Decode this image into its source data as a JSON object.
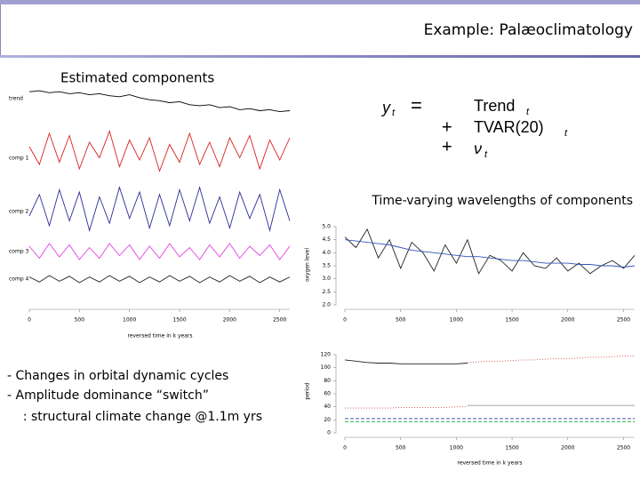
{
  "slide": {
    "title": "Example: Palæoclimatology",
    "left_heading": "Estimated components",
    "right_heading": "Time-varying wavelengths of components",
    "equation": {
      "lhs": "y",
      "lhs_sub": "t",
      "eq": "=",
      "terms": [
        {
          "op": "",
          "text": "Trend",
          "sub": "t"
        },
        {
          "op": "+",
          "text": "TVAR(20)",
          "sub": "t"
        },
        {
          "op": "+",
          "text": "ν",
          "sub": "t"
        }
      ]
    },
    "bullets": [
      "- Changes in orbital dynamic cycles",
      "- Amplitude dominance “switch”",
      "    : structural climate change @1.1m yrs"
    ]
  },
  "chart_data": [
    {
      "type": "panels",
      "xlabel": "reversed time in k years",
      "xlim": [
        0,
        2600
      ],
      "xticks": [
        0,
        500,
        1000,
        1500,
        2000,
        2500
      ],
      "x": [
        0,
        100,
        200,
        300,
        400,
        500,
        600,
        700,
        800,
        900,
        1000,
        1100,
        1200,
        1300,
        1400,
        1500,
        1600,
        1700,
        1800,
        1900,
        2000,
        2100,
        2200,
        2300,
        2400,
        2500,
        2600
      ],
      "panels": [
        {
          "name": "trend",
          "color": "#000000",
          "ylim": [
            -1,
            1.5
          ],
          "values": [
            1.0,
            1.05,
            0.95,
            1.0,
            0.9,
            0.95,
            0.85,
            0.9,
            0.8,
            0.75,
            0.85,
            0.7,
            0.6,
            0.55,
            0.45,
            0.5,
            0.35,
            0.3,
            0.35,
            0.2,
            0.25,
            0.1,
            0.15,
            0.05,
            0.1,
            0.0,
            0.05
          ]
        },
        {
          "name": "comp 1",
          "color": "#d62020",
          "ylim": [
            -1,
            1
          ],
          "values": [
            0.2,
            -0.6,
            0.8,
            -0.5,
            0.7,
            -0.8,
            0.4,
            -0.3,
            0.9,
            -0.7,
            0.5,
            -0.4,
            0.6,
            -0.9,
            0.3,
            -0.5,
            0.8,
            -0.6,
            0.4,
            -0.7,
            0.6,
            -0.3,
            0.7,
            -0.8,
            0.5,
            -0.4,
            0.6
          ]
        },
        {
          "name": "comp 2",
          "color": "#2a2a9a",
          "ylim": [
            -1,
            1
          ],
          "values": [
            -0.3,
            0.6,
            -0.7,
            0.8,
            -0.5,
            0.7,
            -0.9,
            0.5,
            -0.6,
            0.9,
            -0.4,
            0.7,
            -0.8,
            0.6,
            -0.7,
            0.8,
            -0.5,
            0.9,
            -0.6,
            0.5,
            -0.8,
            0.7,
            -0.4,
            0.6,
            -0.9,
            0.8,
            -0.5
          ]
        },
        {
          "name": "comp 3",
          "color": "#e040e0",
          "ylim": [
            -1,
            1
          ],
          "values": [
            0.4,
            -0.5,
            0.6,
            -0.4,
            0.5,
            -0.6,
            0.3,
            -0.5,
            0.6,
            -0.3,
            0.5,
            -0.6,
            0.4,
            -0.5,
            0.6,
            -0.4,
            0.3,
            -0.6,
            0.5,
            -0.4,
            0.6,
            -0.5,
            0.4,
            -0.3,
            0.5,
            -0.6,
            0.4
          ]
        },
        {
          "name": "comp 4",
          "color": "#222222",
          "ylim": [
            -1,
            1
          ],
          "values": [
            0.3,
            -0.4,
            0.5,
            -0.3,
            0.4,
            -0.5,
            0.3,
            -0.4,
            0.5,
            -0.3,
            0.4,
            -0.5,
            0.3,
            -0.4,
            0.5,
            -0.3,
            0.4,
            -0.5,
            0.3,
            -0.4,
            0.5,
            -0.3,
            0.4,
            -0.5,
            0.3,
            -0.4,
            0.3
          ]
        }
      ]
    },
    {
      "type": "line",
      "ylabel": "oxygen level",
      "xlim": [
        0,
        2600
      ],
      "xticks": [
        0,
        500,
        1000,
        1500,
        2000,
        2500
      ],
      "ylim": [
        2,
        5
      ],
      "yticks": [
        {
          "value": 2,
          "label": "2.0"
        },
        {
          "value": 2.5,
          "label": "2.5"
        },
        {
          "value": 3,
          "label": "3.0"
        },
        {
          "value": 3.5,
          "label": "3.5"
        },
        {
          "value": 4,
          "label": "4.0"
        },
        {
          "value": 4.5,
          "label": "4.5"
        },
        {
          "value": 5,
          "label": "5.0"
        }
      ],
      "x": [
        0,
        100,
        200,
        300,
        400,
        500,
        600,
        700,
        800,
        900,
        1000,
        1100,
        1200,
        1300,
        1400,
        1500,
        1600,
        1700,
        1800,
        1900,
        2000,
        2100,
        2200,
        2300,
        2400,
        2500,
        2600
      ],
      "series": [
        {
          "color": "#222222",
          "values": [
            4.6,
            4.2,
            4.9,
            3.8,
            4.5,
            3.4,
            4.4,
            4.0,
            3.3,
            4.3,
            3.6,
            4.5,
            3.2,
            3.9,
            3.7,
            3.3,
            4.0,
            3.5,
            3.4,
            3.8,
            3.3,
            3.6,
            3.2,
            3.5,
            3.7,
            3.4,
            3.9
          ]
        },
        {
          "color": "#3355bb",
          "values": [
            4.5,
            4.45,
            4.4,
            4.35,
            4.3,
            4.2,
            4.1,
            4.05,
            4.0,
            3.95,
            3.9,
            3.85,
            3.85,
            3.8,
            3.75,
            3.7,
            3.7,
            3.65,
            3.6,
            3.6,
            3.6,
            3.55,
            3.55,
            3.5,
            3.5,
            3.45,
            3.5
          ]
        }
      ]
    },
    {
      "type": "line",
      "ylabel": "period",
      "xlabel": "reversed time in k years",
      "xlim": [
        0,
        2600
      ],
      "xticks": [
        0,
        500,
        1000,
        1500,
        2000,
        2500
      ],
      "ylim": [
        0,
        120
      ],
      "yticks": [
        0,
        20,
        40,
        60,
        80,
        100,
        120
      ],
      "x": [
        0,
        100,
        200,
        300,
        400,
        500,
        600,
        700,
        800,
        900,
        1000,
        1100,
        1200,
        1300,
        1400,
        1500,
        1600,
        1700,
        1800,
        1900,
        2000,
        2100,
        2200,
        2300,
        2400,
        2500,
        2600
      ],
      "series": [
        {
          "color": "#222222",
          "dash": "solid",
          "values": [
            112,
            110,
            108,
            107,
            107,
            106,
            106,
            106,
            106,
            106,
            106,
            107,
            null,
            null,
            null,
            null,
            null,
            null,
            null,
            null,
            null,
            null,
            null,
            null,
            null,
            null,
            null
          ]
        },
        {
          "color": "#dd4444",
          "dash": "dotted",
          "values": [
            38,
            38,
            38,
            38,
            38,
            39,
            39,
            39,
            39,
            39,
            40,
            40,
            null,
            null,
            null,
            null,
            null,
            null,
            null,
            null,
            null,
            null,
            null,
            null,
            null,
            null,
            null
          ]
        },
        {
          "color": "#dd4444",
          "dash": "dotted",
          "values": [
            null,
            null,
            null,
            null,
            null,
            null,
            null,
            null,
            null,
            null,
            null,
            108,
            109,
            110,
            110,
            111,
            112,
            112,
            113,
            114,
            114,
            115,
            116,
            116,
            117,
            118,
            118
          ]
        },
        {
          "color": "#999999",
          "dash": "solid",
          "values": [
            null,
            null,
            null,
            null,
            null,
            null,
            null,
            null,
            null,
            null,
            null,
            42,
            42,
            42,
            42,
            42,
            42,
            42,
            42,
            42,
            42,
            42,
            42,
            42,
            42,
            42,
            42
          ]
        },
        {
          "color": "#334499",
          "dash": "dashed",
          "values": [
            22,
            22,
            22,
            22,
            22,
            22,
            22,
            22,
            22,
            22,
            22,
            22,
            22,
            22,
            22,
            22,
            22,
            22,
            22,
            22,
            22,
            22,
            22,
            22,
            22,
            22,
            22
          ]
        },
        {
          "color": "#33bb55",
          "dash": "dashed",
          "values": [
            17,
            17,
            17,
            17,
            17,
            17,
            17,
            17,
            17,
            17,
            17,
            17,
            17,
            17,
            17,
            17,
            17,
            17,
            17,
            17,
            17,
            17,
            17,
            17,
            17,
            17,
            17
          ]
        }
      ]
    }
  ]
}
